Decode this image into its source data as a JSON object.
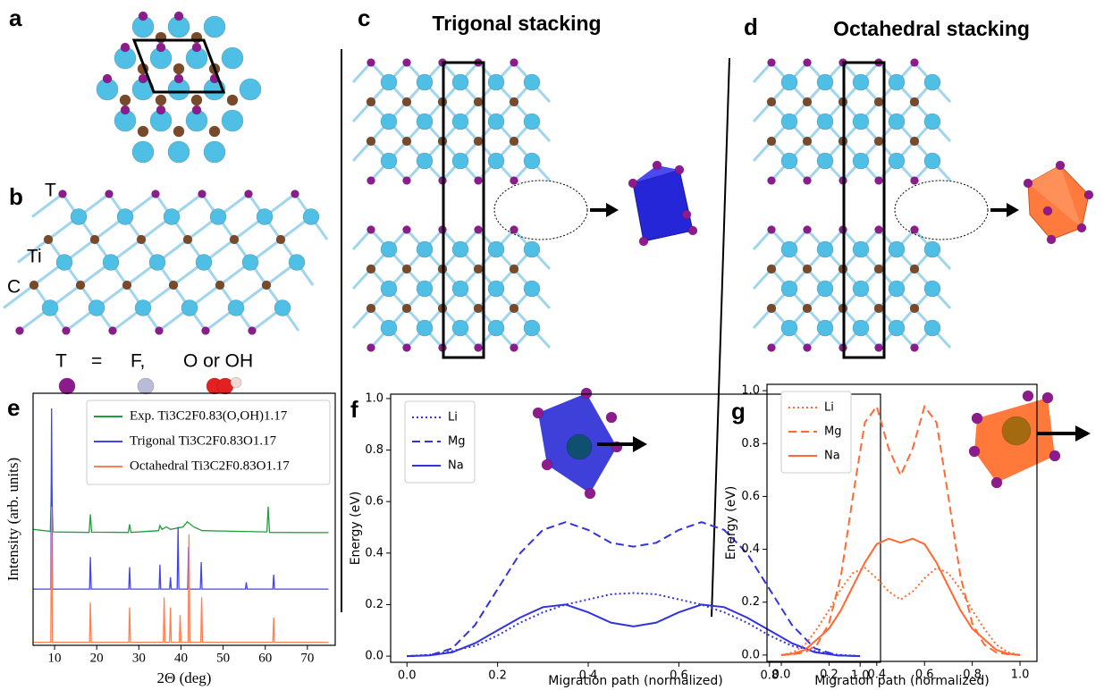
{
  "panels": {
    "a": "a",
    "b": "b",
    "c": "c",
    "d": "d",
    "c_title": "Trigonal stacking",
    "d_title": "Octahedral stacking",
    "atom_labels": [
      "T",
      "Ti",
      "C"
    ],
    "terminations": [
      "T",
      "=",
      "F,",
      "O or OH"
    ]
  },
  "chart_data": [
    {
      "type": "line",
      "panel": "e",
      "x_label": "2Θ (deg)",
      "y_label": "Intensity (arb. units)",
      "xlim": [
        4.9,
        76.6
      ],
      "ylim": [
        0,
        1
      ],
      "xticks": [
        10,
        20,
        30,
        40,
        50,
        60,
        70
      ],
      "legend": "upper right",
      "series": [
        {
          "name": "Exp. Ti3C2F0.83(O,OH)1.17",
          "color": "#1f9e3a",
          "dash": "solid",
          "x": [
            5,
            9,
            9.3,
            9.6,
            18.2,
            18.5,
            18.8,
            27.5,
            27.8,
            28.1,
            34.7,
            35,
            35.5,
            36.5,
            37.5,
            40.5,
            41.5,
            43,
            45,
            60.4,
            60.7,
            61,
            75
          ],
          "values": [
            0.46,
            0.452,
            0.66,
            0.45,
            0.448,
            0.52,
            0.449,
            0.448,
            0.48,
            0.448,
            0.455,
            0.475,
            0.46,
            0.47,
            0.46,
            0.47,
            0.49,
            0.47,
            0.455,
            0.45,
            0.55,
            0.448,
            0.447
          ]
        },
        {
          "name": "Trigonal Ti3C2F0.83O1.17",
          "color": "#4444ee",
          "dash": "solid",
          "x": [
            5,
            9.1,
            9.3,
            9.5,
            18.3,
            18.5,
            18.7,
            27.6,
            27.8,
            28,
            34.8,
            35,
            35.2,
            37.3,
            37.5,
            37.7,
            39.1,
            39.3,
            39.5,
            41.6,
            41.8,
            42,
            44.6,
            44.8,
            45,
            55.3,
            55.5,
            55.7,
            61.8,
            62,
            62.2,
            75
          ],
          "values": [
            0.223,
            0.223,
            0.94,
            0.223,
            0.223,
            0.35,
            0.223,
            0.223,
            0.31,
            0.223,
            0.223,
            0.32,
            0.223,
            0.223,
            0.27,
            0.223,
            0.223,
            0.47,
            0.223,
            0.223,
            0.39,
            0.223,
            0.223,
            0.33,
            0.223,
            0.223,
            0.25,
            0.223,
            0.223,
            0.28,
            0.223,
            0.223
          ]
        },
        {
          "name": "Octahedral Ti3C2F0.83O1.17",
          "color": "#ff7f50",
          "dash": "solid",
          "x": [
            5,
            9.1,
            9.3,
            9.5,
            18.3,
            18.5,
            18.7,
            27.6,
            27.8,
            28,
            35.8,
            36,
            36.2,
            37.3,
            37.5,
            37.7,
            39.6,
            39.8,
            40,
            41.7,
            41.9,
            42.1,
            44.7,
            44.9,
            45.1,
            61.8,
            62,
            62.2,
            75
          ],
          "values": [
            0.012,
            0.012,
            0.55,
            0.012,
            0.012,
            0.17,
            0.012,
            0.012,
            0.15,
            0.012,
            0.012,
            0.19,
            0.012,
            0.012,
            0.15,
            0.012,
            0.012,
            0.12,
            0.012,
            0.012,
            0.44,
            0.012,
            0.012,
            0.19,
            0.012,
            0.012,
            0.11,
            0.012,
            0.012
          ]
        }
      ]
    },
    {
      "type": "line",
      "panel": "f",
      "x_label": "Migration path (normalized)",
      "y_label": "Energy (eV)",
      "xlim": [
        -0.036,
        1.045
      ],
      "ylim": [
        -0.024,
        1.017
      ],
      "xticks": [
        {
          "value": 0,
          "label": "0.0"
        },
        0.2,
        0.4,
        0.6,
        0.8,
        {
          "value": 1,
          "label": "1.0"
        }
      ],
      "yticks": [
        {
          "value": 0,
          "label": "0.0"
        },
        0.2,
        0.4,
        0.6,
        0.8,
        {
          "value": 1,
          "label": "1.0"
        }
      ],
      "legend": "upper left",
      "x": [
        0,
        0.05,
        0.1,
        0.15,
        0.2,
        0.25,
        0.3,
        0.35,
        0.4,
        0.45,
        0.5,
        0.55,
        0.6,
        0.65,
        0.7,
        0.75,
        0.8,
        0.85,
        0.9,
        0.95,
        1
      ],
      "series": [
        {
          "name": "Li",
          "color": "#3333dd",
          "dash": "dotted",
          "values": [
            0,
            0.005,
            0.02,
            0.04,
            0.08,
            0.13,
            0.17,
            0.2,
            0.22,
            0.24,
            0.245,
            0.24,
            0.22,
            0.2,
            0.17,
            0.13,
            0.08,
            0.04,
            0.02,
            0.005,
            0
          ]
        },
        {
          "name": "Mg",
          "color": "#3333dd",
          "dash": "dashed",
          "values": [
            0,
            0.003,
            0.03,
            0.12,
            0.26,
            0.4,
            0.49,
            0.52,
            0.49,
            0.44,
            0.425,
            0.44,
            0.49,
            0.52,
            0.49,
            0.4,
            0.26,
            0.12,
            0.03,
            0.003,
            0
          ]
        },
        {
          "name": "Na",
          "color": "#3333dd",
          "dash": "solid",
          "values": [
            0,
            0.003,
            0.015,
            0.05,
            0.1,
            0.15,
            0.19,
            0.2,
            0.17,
            0.13,
            0.115,
            0.13,
            0.17,
            0.2,
            0.19,
            0.15,
            0.1,
            0.05,
            0.015,
            0.003,
            0
          ]
        }
      ]
    },
    {
      "type": "line",
      "panel": "g",
      "x_label": "Migration path (normalized)",
      "y_label": "Energy (eV)",
      "xlim": [
        -0.06,
        1.071
      ],
      "ylim": [
        -0.024,
        1.024
      ],
      "xticks": [
        {
          "value": 0,
          "label": "0.0"
        },
        0.2,
        0.4,
        0.6,
        0.8,
        {
          "value": 1,
          "label": "1.0"
        }
      ],
      "yticks": [
        {
          "value": 0,
          "label": "0.0"
        },
        0.2,
        0.4,
        0.6,
        0.8,
        {
          "value": 1,
          "label": "1.0"
        }
      ],
      "legend": "upper left",
      "x": [
        0,
        0.05,
        0.1,
        0.15,
        0.2,
        0.25,
        0.3,
        0.35,
        0.4,
        0.45,
        0.5,
        0.55,
        0.6,
        0.65,
        0.7,
        0.75,
        0.8,
        0.85,
        0.9,
        0.95,
        1
      ],
      "series": [
        {
          "name": "Li",
          "color": "#ff6a33",
          "dash": "dotted",
          "values": [
            0,
            0.01,
            0.04,
            0.1,
            0.17,
            0.25,
            0.31,
            0.33,
            0.29,
            0.24,
            0.21,
            0.24,
            0.29,
            0.33,
            0.31,
            0.25,
            0.17,
            0.1,
            0.04,
            0.01,
            0
          ]
        },
        {
          "name": "Mg",
          "color": "#ff6a33",
          "dash": "dashed",
          "values": [
            0,
            0.003,
            0.01,
            0.04,
            0.12,
            0.3,
            0.6,
            0.88,
            0.94,
            0.78,
            0.68,
            0.78,
            0.94,
            0.88,
            0.6,
            0.3,
            0.12,
            0.04,
            0.01,
            0.003,
            0
          ]
        },
        {
          "name": "Na",
          "color": "#ff6a33",
          "dash": "solid",
          "values": [
            0,
            0.005,
            0.02,
            0.06,
            0.1,
            0.17,
            0.26,
            0.35,
            0.42,
            0.44,
            0.425,
            0.44,
            0.42,
            0.35,
            0.26,
            0.17,
            0.1,
            0.06,
            0.02,
            0.005,
            0
          ]
        }
      ]
    }
  ]
}
